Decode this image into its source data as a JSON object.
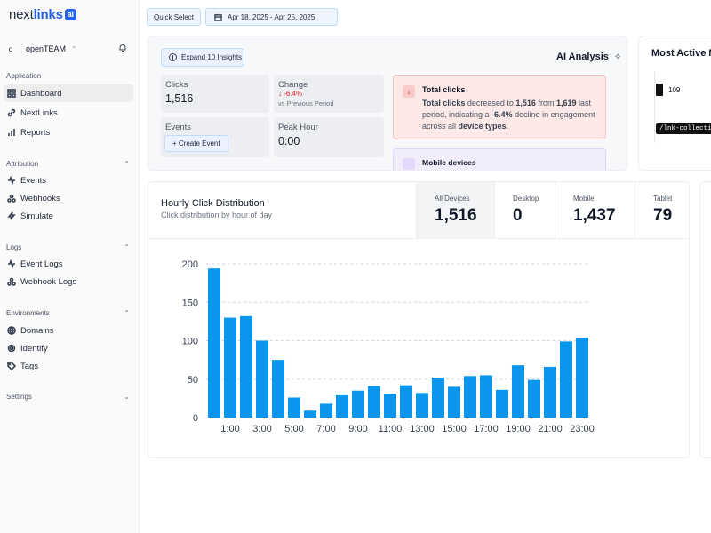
{
  "sidebar": {
    "logo": {
      "part1": "next",
      "part2": "links",
      "badge": "ai"
    },
    "team": {
      "avatar": "o",
      "name": "openTEAM"
    },
    "sections": {
      "application": "Application",
      "attribution": "Attribution",
      "logs": "Logs",
      "environments": "Environments",
      "settings": "Settings"
    },
    "items": {
      "dashboard": "Dashboard",
      "nextlinks": "NextLinks",
      "reports": "Reports",
      "events": "Events",
      "webhooks": "Webhooks",
      "simulate": "Simulate",
      "event_logs": "Event Logs",
      "webhook_logs": "Webhook Logs",
      "domains": "Domains",
      "identify": "Identify",
      "tags": "Tags"
    }
  },
  "topbar": {
    "quick_select": "Quick Select",
    "date_range": "Apr 18, 2025 - Apr 25, 2025"
  },
  "insights": {
    "expand_label": "Expand 10 Insights",
    "ai_title": "AI Analysis",
    "clicks_label": "Clicks",
    "clicks_value": "1,516",
    "change_label": "Change",
    "change_value": "↓ -6.4%",
    "change_sub": "vs Previous Period",
    "events_label": "Events",
    "create_event": "+ Create Event",
    "peak_label": "Peak Hour",
    "peak_value": "0:00",
    "alert_title": "Total clicks",
    "alert_body": {
      "p1": "Total clicks",
      "p2": " decreased to ",
      "p3": "1,516",
      "p4": " from ",
      "p5": "1,619",
      "p6": " last period, indicating a ",
      "p7": "-6.4%",
      "p8": " decline in engagement across all ",
      "p9": "device types",
      "p10": "."
    },
    "alert2_title": "Mobile devices"
  },
  "most_active": {
    "title": "Most Active Ne",
    "value": "109",
    "tooltip": "/lnk-collection_i"
  },
  "distribution": {
    "title": "Hourly Click Distribution",
    "subtitle": "Click distribution by hour of day",
    "devices": [
      {
        "label": "All Devices",
        "value": "1,516"
      },
      {
        "label": "Desktop",
        "value": "0"
      },
      {
        "label": "Mobile",
        "value": "1,437"
      },
      {
        "label": "Tablet",
        "value": "79"
      }
    ]
  },
  "colors": {
    "bar": "#0b96ee",
    "accent": "#2563eb"
  },
  "chart_data": {
    "type": "bar",
    "categories": [
      "0:00",
      "1:00",
      "2:00",
      "3:00",
      "4:00",
      "5:00",
      "6:00",
      "7:00",
      "8:00",
      "9:00",
      "10:00",
      "11:00",
      "12:00",
      "13:00",
      "14:00",
      "15:00",
      "16:00",
      "17:00",
      "18:00",
      "19:00",
      "20:00",
      "21:00",
      "22:00",
      "23:00"
    ],
    "tick_labels": [
      "1:00",
      "3:00",
      "5:00",
      "7:00",
      "9:00",
      "11:00",
      "13:00",
      "15:00",
      "17:00",
      "19:00",
      "21:00",
      "23:00"
    ],
    "values": [
      194,
      130,
      132,
      100,
      75,
      26,
      9,
      18,
      29,
      35,
      41,
      31,
      42,
      32,
      52,
      40,
      54,
      55,
      36,
      68,
      49,
      66,
      99,
      104
    ],
    "yticks": [
      0,
      50,
      100,
      150,
      200
    ],
    "ylim": [
      0,
      200
    ],
    "grid": true,
    "title": "",
    "xlabel": "",
    "ylabel": ""
  }
}
